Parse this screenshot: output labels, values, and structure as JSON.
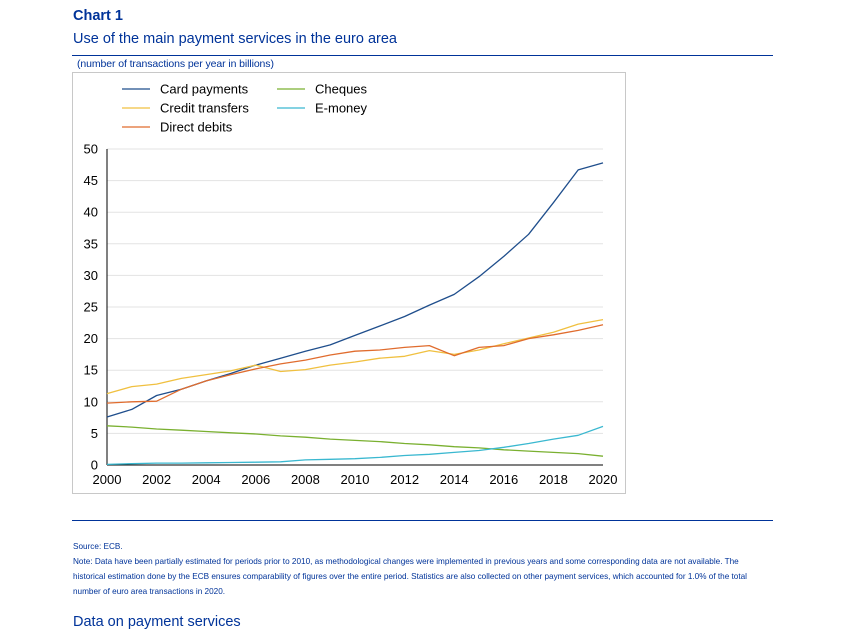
{
  "header": {
    "chart_label": "Chart 1",
    "title": "Use of the main payment services in the euro area"
  },
  "chart_data": {
    "type": "line",
    "ylabel": "(number of transactions per year in billions)",
    "x": [
      2000,
      2001,
      2002,
      2003,
      2004,
      2005,
      2006,
      2007,
      2008,
      2009,
      2010,
      2011,
      2012,
      2013,
      2014,
      2015,
      2016,
      2017,
      2018,
      2019,
      2020
    ],
    "xticks": [
      2000,
      2002,
      2004,
      2006,
      2008,
      2010,
      2012,
      2014,
      2016,
      2018,
      2020
    ],
    "xlim": [
      2000,
      2020
    ],
    "ylim": [
      0,
      50
    ],
    "yticks": [
      0,
      5,
      10,
      15,
      20,
      25,
      30,
      35,
      40,
      45,
      50
    ],
    "grid": true,
    "legend_position": "top-left",
    "series": [
      {
        "name": "Card payments",
        "color": "#1f4e8c",
        "values": [
          7.6,
          8.8,
          11.0,
          12.0,
          13.3,
          14.5,
          15.8,
          16.9,
          18.0,
          19.0,
          20.5,
          22.0,
          23.5,
          25.3,
          27.0,
          29.8,
          33.0,
          36.5,
          41.5,
          46.7,
          47.8
        ]
      },
      {
        "name": "Credit transfers",
        "color": "#f0c040",
        "values": [
          11.3,
          12.4,
          12.8,
          13.7,
          14.3,
          14.9,
          15.8,
          14.8,
          15.1,
          15.8,
          16.3,
          16.9,
          17.2,
          18.1,
          17.5,
          18.2,
          19.2,
          20.1,
          21.0,
          22.3,
          23.0
        ]
      },
      {
        "name": "Direct debits",
        "color": "#e06c2e",
        "values": [
          9.8,
          10.0,
          10.1,
          12.0,
          13.3,
          14.3,
          15.2,
          16.0,
          16.6,
          17.4,
          18.0,
          18.2,
          18.6,
          18.9,
          17.3,
          18.6,
          18.9,
          20.0,
          20.6,
          21.3,
          22.2
        ]
      },
      {
        "name": "Cheques",
        "color": "#7ab030",
        "values": [
          6.2,
          6.0,
          5.7,
          5.5,
          5.3,
          5.1,
          4.9,
          4.6,
          4.4,
          4.1,
          3.9,
          3.7,
          3.4,
          3.2,
          2.9,
          2.7,
          2.4,
          2.2,
          2.0,
          1.8,
          1.4
        ]
      },
      {
        "name": "E-money",
        "color": "#3ab8d0",
        "values": [
          0.1,
          0.2,
          0.3,
          0.3,
          0.35,
          0.4,
          0.45,
          0.5,
          0.8,
          0.9,
          1.0,
          1.2,
          1.5,
          1.7,
          2.0,
          2.3,
          2.8,
          3.4,
          4.1,
          4.7,
          6.1
        ]
      }
    ]
  },
  "footer": {
    "source": "Source: ECB.",
    "note": "Note: Data have been partially estimated for periods prior to 2010, as methodological changes were implemented in previous years and some corresponding data are not available. The historical estimation done by the ECB ensures comparability of figures over the entire period. Statistics are also collected on other payment services, which accounted for 1.0% of the total number of euro area transactions in 2020."
  },
  "next_section": {
    "title": "Data on payment services"
  }
}
